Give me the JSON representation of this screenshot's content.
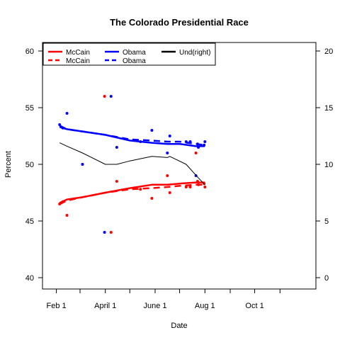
{
  "chart_data": {
    "type": "line",
    "title": "The Colorado Presidential Race",
    "xlabel": "Date",
    "ylabel": "Percent",
    "x_axis": {
      "type": "date",
      "range": [
        "2008-01-15",
        "2008-12-15"
      ],
      "ticks": [
        "2008-02-01",
        "2008-03-01",
        "2008-04-01",
        "2008-05-01",
        "2008-06-01",
        "2008-07-01",
        "2008-08-01",
        "2008-09-01",
        "2008-10-01",
        "2008-11-01"
      ],
      "tick_labels": [
        {
          "date": "2008-02-01",
          "label": "Feb 1"
        },
        {
          "date": "2008-04-01",
          "label": "April 1"
        },
        {
          "date": "2008-06-01",
          "label": "June 1"
        },
        {
          "date": "2008-08-01",
          "label": "Aug 1"
        },
        {
          "date": "2008-10-01",
          "label": "Oct 1"
        }
      ]
    },
    "ylim_left": [
      40,
      60
    ],
    "yticks_left": [
      40,
      45,
      50,
      55,
      60
    ],
    "ylim_right": [
      0,
      20
    ],
    "yticks_right": [
      0,
      5,
      10,
      15,
      20
    ],
    "grid": false,
    "legend": {
      "placement": "top-left",
      "entries": [
        {
          "label": "McCain",
          "color": "#ff0000",
          "style": "solid"
        },
        {
          "label": "McCain",
          "color": "#ff0000",
          "style": "dashed"
        },
        {
          "label": "Obama",
          "color": "#0000ff",
          "style": "solid"
        },
        {
          "label": "Obama",
          "color": "#0000ff",
          "style": "dashed"
        },
        {
          "label": "Und(right)",
          "color": "#000000",
          "style": "solid"
        }
      ]
    },
    "series": [
      {
        "name": "McCain",
        "role": "polls",
        "kind": "points",
        "color": "#ff0000",
        "axis": "left",
        "x": [
          "2008-02-05",
          "2008-02-07",
          "2008-02-09",
          "2008-02-14",
          "2008-03-04",
          "2008-03-31",
          "2008-04-08",
          "2008-04-15",
          "2008-05-14",
          "2008-05-28",
          "2008-06-16",
          "2008-06-19",
          "2008-07-09",
          "2008-07-14",
          "2008-07-21",
          "2008-07-23",
          "2008-07-24",
          "2008-07-31",
          "2008-08-01"
        ],
        "y": [
          46.5,
          46.6,
          46.7,
          45.5,
          50.0,
          56.0,
          44.0,
          48.5,
          47.8,
          47.0,
          49.0,
          47.5,
          48.0,
          48.0,
          51.0,
          48.5,
          48.2,
          48.3,
          48.0
        ]
      },
      {
        "name": "Obama",
        "role": "polls",
        "kind": "points",
        "color": "#0000ff",
        "axis": "left",
        "x": [
          "2008-02-05",
          "2008-02-07",
          "2008-02-09",
          "2008-02-14",
          "2008-03-04",
          "2008-03-31",
          "2008-04-08",
          "2008-04-15",
          "2008-05-14",
          "2008-05-28",
          "2008-06-16",
          "2008-06-19",
          "2008-07-09",
          "2008-07-14",
          "2008-07-21",
          "2008-07-23",
          "2008-07-24",
          "2008-07-31",
          "2008-08-01"
        ],
        "y": [
          53.5,
          53.3,
          53.2,
          54.5,
          50.0,
          44.0,
          56.0,
          51.5,
          52.0,
          53.0,
          51.0,
          52.5,
          52.0,
          52.0,
          49.0,
          51.8,
          51.5,
          51.7,
          52.0
        ]
      },
      {
        "name": "McCain",
        "role": "trend",
        "kind": "line",
        "color": "#ff0000",
        "style": "solid",
        "axis": "left",
        "x": [
          "2008-02-05",
          "2008-02-14",
          "2008-03-04",
          "2008-04-01",
          "2008-05-01",
          "2008-05-28",
          "2008-06-16",
          "2008-07-01",
          "2008-07-21",
          "2008-08-01"
        ],
        "y": [
          46.6,
          46.9,
          47.1,
          47.5,
          47.9,
          48.2,
          48.2,
          48.3,
          48.4,
          48.4
        ]
      },
      {
        "name": "McCain",
        "role": "trend",
        "kind": "line",
        "color": "#ff0000",
        "style": "dashed",
        "axis": "left",
        "x": [
          "2008-02-05",
          "2008-02-14",
          "2008-03-04",
          "2008-04-01",
          "2008-05-01",
          "2008-05-28",
          "2008-06-16",
          "2008-07-01",
          "2008-07-21",
          "2008-08-01"
        ],
        "y": [
          46.5,
          46.8,
          47.1,
          47.5,
          47.8,
          47.9,
          48.0,
          48.1,
          48.2,
          48.2
        ]
      },
      {
        "name": "Obama",
        "role": "trend",
        "kind": "line",
        "color": "#0000ff",
        "style": "solid",
        "axis": "left",
        "x": [
          "2008-02-05",
          "2008-02-14",
          "2008-03-04",
          "2008-04-01",
          "2008-05-01",
          "2008-05-28",
          "2008-06-16",
          "2008-07-01",
          "2008-07-21",
          "2008-08-01"
        ],
        "y": [
          53.3,
          53.1,
          52.9,
          52.6,
          52.1,
          51.9,
          51.8,
          51.8,
          51.6,
          51.6
        ]
      },
      {
        "name": "Obama",
        "role": "trend",
        "kind": "line",
        "color": "#0000ff",
        "style": "dashed",
        "axis": "left",
        "x": [
          "2008-02-05",
          "2008-02-14",
          "2008-03-04",
          "2008-04-01",
          "2008-05-01",
          "2008-05-28",
          "2008-06-16",
          "2008-07-01",
          "2008-07-21",
          "2008-08-01"
        ],
        "y": [
          53.4,
          53.1,
          52.9,
          52.6,
          52.2,
          52.1,
          52.0,
          52.0,
          51.8,
          51.7
        ]
      },
      {
        "name": "Und(right)",
        "role": "trend",
        "kind": "line",
        "color": "#000000",
        "style": "solid",
        "axis": "right",
        "x": [
          "2008-02-05",
          "2008-02-14",
          "2008-03-04",
          "2008-04-01",
          "2008-04-15",
          "2008-05-01",
          "2008-05-28",
          "2008-06-16",
          "2008-06-19",
          "2008-07-09",
          "2008-07-24",
          "2008-08-01"
        ],
        "y": [
          11.9,
          11.6,
          11.0,
          10.0,
          10.0,
          10.3,
          10.7,
          10.6,
          10.7,
          10.0,
          8.8,
          8.2
        ]
      }
    ]
  }
}
